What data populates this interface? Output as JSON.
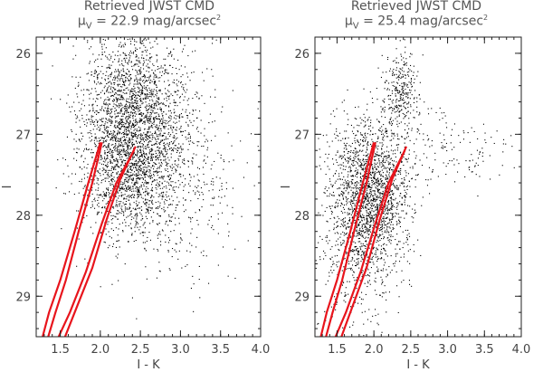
{
  "figure": {
    "panels": [
      {
        "title": "Retrieved JWST CMD",
        "subtitle_symbol": "μ",
        "subtitle_sub": "V",
        "subtitle_value": " = 22.9 mag/arcsec",
        "subtitle_sup": "2"
      },
      {
        "title": "Retrieved JWST CMD",
        "subtitle_symbol": "μ",
        "subtitle_sub": "V",
        "subtitle_value": " = 25.4 mag/arcsec",
        "subtitle_sup": "2"
      }
    ]
  },
  "chart_data": [
    {
      "type": "scatter",
      "title": "Retrieved JWST CMD",
      "subtitle": "μV = 22.9 mag/arcsec²",
      "xlabel": "I - K",
      "ylabel": "I",
      "xlim": [
        1.2,
        4.0
      ],
      "ylim": [
        29.5,
        25.8
      ],
      "y_inverted": true,
      "xticks": [
        "1.5",
        "2.0",
        "2.5",
        "3.0",
        "3.5",
        "4.0"
      ],
      "yticks": [
        "26",
        "27",
        "28",
        "29"
      ],
      "xtick_values": [
        1.5,
        2.0,
        2.5,
        3.0,
        3.5,
        4.0
      ],
      "ytick_values": [
        26,
        27,
        28,
        29
      ],
      "grid": false,
      "point_color": "#000000",
      "line_color": "#e8141c",
      "scatter_components": [
        {
          "center": [
            2.4,
            26.8
          ],
          "spread": [
            0.32,
            0.55
          ],
          "count": 2200
        },
        {
          "center": [
            2.75,
            27.4
          ],
          "spread": [
            0.45,
            0.6
          ],
          "count": 800
        },
        {
          "center": [
            2.3,
            27.6
          ],
          "spread": [
            0.3,
            0.35
          ],
          "count": 600
        }
      ],
      "isochrones": [
        {
          "x": [
            2.0,
            1.85,
            1.68,
            1.5,
            1.36,
            1.28
          ],
          "y": [
            27.1,
            27.6,
            28.2,
            28.8,
            29.2,
            29.5
          ]
        },
        {
          "x": [
            2.02,
            1.9,
            1.73,
            1.57,
            1.44,
            1.35
          ],
          "y": [
            27.1,
            27.6,
            28.2,
            28.8,
            29.2,
            29.5
          ]
        },
        {
          "x": [
            2.42,
            2.2,
            2.02,
            1.82,
            1.62,
            1.48
          ],
          "y": [
            27.2,
            27.6,
            28.1,
            28.7,
            29.2,
            29.5
          ]
        },
        {
          "x": [
            2.44,
            2.25,
            2.08,
            1.9,
            1.7,
            1.56
          ],
          "y": [
            27.15,
            27.55,
            28.05,
            28.65,
            29.15,
            29.5
          ]
        }
      ]
    },
    {
      "type": "scatter",
      "title": "Retrieved JWST CMD",
      "subtitle": "μV = 25.4 mag/arcsec²",
      "xlabel": "I - K",
      "ylabel": "I",
      "xlim": [
        1.2,
        4.0
      ],
      "ylim": [
        29.5,
        25.8
      ],
      "y_inverted": true,
      "xticks": [
        "1.5",
        "2.0",
        "2.5",
        "3.0",
        "3.5",
        "4.0"
      ],
      "yticks": [
        "26",
        "27",
        "28",
        "29"
      ],
      "xtick_values": [
        1.5,
        2.0,
        2.5,
        3.0,
        3.5,
        4.0
      ],
      "ytick_values": [
        26,
        27,
        28,
        29
      ],
      "grid": false,
      "point_color": "#000000",
      "line_color": "#e8141c",
      "scatter_components": [
        {
          "center": [
            1.95,
            27.7
          ],
          "spread": [
            0.26,
            0.45
          ],
          "count": 1700
        },
        {
          "center": [
            2.35,
            26.5
          ],
          "spread": [
            0.12,
            0.25
          ],
          "count": 300
        },
        {
          "center": [
            1.75,
            28.4
          ],
          "spread": [
            0.28,
            0.5
          ],
          "count": 500
        },
        {
          "center": [
            2.9,
            27.2
          ],
          "spread": [
            0.5,
            0.3
          ],
          "count": 180
        }
      ],
      "isochrones": [
        {
          "x": [
            2.0,
            1.85,
            1.68,
            1.5,
            1.36,
            1.28
          ],
          "y": [
            27.1,
            27.6,
            28.2,
            28.8,
            29.2,
            29.5
          ]
        },
        {
          "x": [
            2.02,
            1.9,
            1.73,
            1.57,
            1.44,
            1.35
          ],
          "y": [
            27.1,
            27.6,
            28.2,
            28.8,
            29.2,
            29.5
          ]
        },
        {
          "x": [
            2.42,
            2.2,
            2.02,
            1.82,
            1.62,
            1.48
          ],
          "y": [
            27.2,
            27.6,
            28.1,
            28.7,
            29.2,
            29.5
          ]
        },
        {
          "x": [
            2.44,
            2.25,
            2.08,
            1.9,
            1.7,
            1.56
          ],
          "y": [
            27.15,
            27.55,
            28.05,
            28.65,
            29.15,
            29.5
          ]
        }
      ]
    }
  ]
}
